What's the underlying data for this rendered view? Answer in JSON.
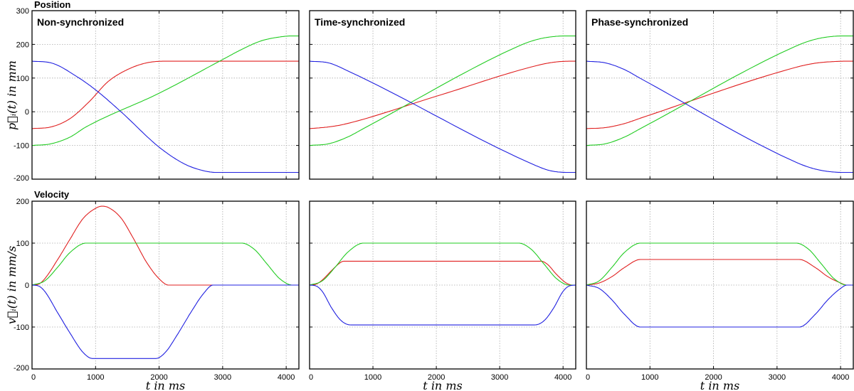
{
  "row_titles": {
    "position": "Position",
    "velocity": "Velocity"
  },
  "axis_labels": {
    "position_y": "p⃗ᵢ(t) in mm",
    "velocity_y": "v⃗ᵢ(t) in mm/s",
    "x": "t in ms"
  },
  "colors": {
    "red": "#e02020",
    "green": "#22cc22",
    "blue": "#2020e0"
  },
  "chart_data": [
    {
      "type": "line",
      "row": "position",
      "col": 0,
      "title": "Non-synchronized",
      "xlim": [
        0,
        4200
      ],
      "ylim": [
        -200,
        300
      ],
      "xticks": [
        0,
        1000,
        2000,
        3000,
        4000
      ],
      "yticks": [
        -200,
        -100,
        0,
        100,
        200,
        300
      ],
      "grid": true,
      "series": [
        {
          "color": "red",
          "points": [
            [
              0,
              -50
            ],
            [
              300,
              -45
            ],
            [
              600,
              -20
            ],
            [
              900,
              30
            ],
            [
              1200,
              90
            ],
            [
              1500,
              125
            ],
            [
              1800,
              145
            ],
            [
              2100,
              150
            ],
            [
              4200,
              150
            ]
          ]
        },
        {
          "color": "green",
          "points": [
            [
              0,
              -100
            ],
            [
              300,
              -95
            ],
            [
              600,
              -75
            ],
            [
              850,
              -45
            ],
            [
              2000,
              55
            ],
            [
              3000,
              155
            ],
            [
              3300,
              185
            ],
            [
              3600,
              210
            ],
            [
              3900,
              222
            ],
            [
              4100,
              225
            ],
            [
              4200,
              225
            ]
          ]
        },
        {
          "color": "blue",
          "points": [
            [
              0,
              150
            ],
            [
              300,
              145
            ],
            [
              700,
              105
            ],
            [
              1000,
              65
            ],
            [
              1400,
              0
            ],
            [
              2000,
              -105
            ],
            [
              2400,
              -155
            ],
            [
              2700,
              -175
            ],
            [
              2900,
              -180
            ],
            [
              4200,
              -180
            ]
          ]
        }
      ]
    },
    {
      "type": "line",
      "row": "position",
      "col": 1,
      "title": "Time-synchronized",
      "xlim": [
        0,
        4200
      ],
      "ylim": [
        -200,
        300
      ],
      "xticks": [
        0,
        1000,
        2000,
        3000,
        4000
      ],
      "yticks": [
        -200,
        -100,
        0,
        100,
        200,
        300
      ],
      "grid": true,
      "series": [
        {
          "color": "red",
          "points": [
            [
              0,
              -50
            ],
            [
              300,
              -45
            ],
            [
              550,
              -37
            ],
            [
              2000,
              46
            ],
            [
              3650,
              140
            ],
            [
              3900,
              148
            ],
            [
              4150,
              150
            ],
            [
              4200,
              150
            ]
          ]
        },
        {
          "color": "green",
          "points": [
            [
              0,
              -100
            ],
            [
              300,
              -95
            ],
            [
              600,
              -75
            ],
            [
              850,
              -50
            ],
            [
              3300,
              195
            ],
            [
              3600,
              215
            ],
            [
              3900,
              224
            ],
            [
              4100,
              225
            ],
            [
              4200,
              225
            ]
          ]
        },
        {
          "color": "blue",
          "points": [
            [
              0,
              150
            ],
            [
              300,
              145
            ],
            [
              650,
              117
            ],
            [
              3550,
              -158
            ],
            [
              3800,
              -175
            ],
            [
              4100,
              -180
            ],
            [
              4200,
              -180
            ]
          ]
        }
      ]
    },
    {
      "type": "line",
      "row": "position",
      "col": 2,
      "title": "Phase-synchronized",
      "xlim": [
        0,
        4200
      ],
      "ylim": [
        -200,
        300
      ],
      "xticks": [
        0,
        1000,
        2000,
        3000,
        4000
      ],
      "yticks": [
        -200,
        -100,
        0,
        100,
        200,
        300
      ],
      "grid": true,
      "series": [
        {
          "color": "red",
          "points": [
            [
              0,
              -50
            ],
            [
              300,
              -47
            ],
            [
              600,
              -35
            ],
            [
              850,
              -19
            ],
            [
              3300,
              132
            ],
            [
              3600,
              144
            ],
            [
              3900,
              149
            ],
            [
              4100,
              150
            ],
            [
              4200,
              150
            ]
          ]
        },
        {
          "color": "green",
          "points": [
            [
              0,
              -100
            ],
            [
              300,
              -95
            ],
            [
              600,
              -75
            ],
            [
              850,
              -50
            ],
            [
              3300,
              195
            ],
            [
              3600,
              215
            ],
            [
              3900,
              224
            ],
            [
              4100,
              225
            ],
            [
              4200,
              225
            ]
          ]
        },
        {
          "color": "blue",
          "points": [
            [
              0,
              150
            ],
            [
              300,
              145
            ],
            [
              600,
              125
            ],
            [
              850,
              99
            ],
            [
              3300,
              -150
            ],
            [
              3600,
              -170
            ],
            [
              3900,
              -179
            ],
            [
              4100,
              -180
            ],
            [
              4200,
              -180
            ]
          ]
        }
      ]
    },
    {
      "type": "line",
      "row": "velocity",
      "col": 0,
      "title": "",
      "xlim": [
        0,
        4200
      ],
      "ylim": [
        -200,
        200
      ],
      "xticks": [
        0,
        1000,
        2000,
        3000,
        4000
      ],
      "yticks": [
        -200,
        -100,
        0,
        100,
        200
      ],
      "grid": true,
      "series": [
        {
          "color": "red",
          "points": [
            [
              0,
              0
            ],
            [
              100,
              2
            ],
            [
              200,
              15
            ],
            [
              400,
              60
            ],
            [
              600,
              110
            ],
            [
              800,
              158
            ],
            [
              1000,
              183
            ],
            [
              1100,
              188
            ],
            [
              1200,
              185
            ],
            [
              1400,
              160
            ],
            [
              1600,
              110
            ],
            [
              1800,
              55
            ],
            [
              2000,
              15
            ],
            [
              2150,
              0
            ],
            [
              4200,
              0
            ]
          ]
        },
        {
          "color": "green",
          "points": [
            [
              0,
              0
            ],
            [
              200,
              10
            ],
            [
              400,
              42
            ],
            [
              600,
              78
            ],
            [
              850,
              100
            ],
            [
              3300,
              100
            ],
            [
              3500,
              85
            ],
            [
              3700,
              50
            ],
            [
              3900,
              15
            ],
            [
              4100,
              0
            ],
            [
              4200,
              0
            ]
          ]
        },
        {
          "color": "blue",
          "points": [
            [
              0,
              0
            ],
            [
              100,
              -2
            ],
            [
              200,
              -15
            ],
            [
              400,
              -65
            ],
            [
              600,
              -115
            ],
            [
              800,
              -160
            ],
            [
              950,
              -175
            ],
            [
              1950,
              -175
            ],
            [
              2100,
              -160
            ],
            [
              2300,
              -115
            ],
            [
              2500,
              -65
            ],
            [
              2700,
              -20
            ],
            [
              2850,
              0
            ],
            [
              4200,
              0
            ]
          ]
        }
      ]
    },
    {
      "type": "line",
      "row": "velocity",
      "col": 1,
      "title": "",
      "xlim": [
        0,
        4200
      ],
      "ylim": [
        -200,
        200
      ],
      "xticks": [
        0,
        1000,
        2000,
        3000,
        4000
      ],
      "yticks": [
        -200,
        -100,
        0,
        100,
        200
      ],
      "grid": true,
      "series": [
        {
          "color": "red",
          "points": [
            [
              0,
              0
            ],
            [
              100,
              2
            ],
            [
              200,
              12
            ],
            [
              350,
              35
            ],
            [
              500,
              55
            ],
            [
              550,
              57
            ],
            [
              3650,
              57
            ],
            [
              3750,
              50
            ],
            [
              3900,
              25
            ],
            [
              4050,
              5
            ],
            [
              4150,
              0
            ],
            [
              4200,
              0
            ]
          ]
        },
        {
          "color": "green",
          "points": [
            [
              0,
              0
            ],
            [
              200,
              10
            ],
            [
              400,
              42
            ],
            [
              600,
              78
            ],
            [
              850,
              100
            ],
            [
              3300,
              100
            ],
            [
              3500,
              85
            ],
            [
              3700,
              50
            ],
            [
              3900,
              15
            ],
            [
              4100,
              0
            ],
            [
              4200,
              0
            ]
          ]
        },
        {
          "color": "blue",
          "points": [
            [
              0,
              0
            ],
            [
              100,
              -2
            ],
            [
              200,
              -15
            ],
            [
              350,
              -55
            ],
            [
              500,
              -85
            ],
            [
              650,
              -95
            ],
            [
              3550,
              -95
            ],
            [
              3700,
              -85
            ],
            [
              3850,
              -55
            ],
            [
              4000,
              -15
            ],
            [
              4100,
              -2
            ],
            [
              4200,
              0
            ]
          ]
        }
      ]
    },
    {
      "type": "line",
      "row": "velocity",
      "col": 2,
      "title": "",
      "xlim": [
        0,
        4200
      ],
      "ylim": [
        -200,
        200
      ],
      "xticks": [
        0,
        1000,
        2000,
        3000,
        4000
      ],
      "yticks": [
        -200,
        -100,
        0,
        100,
        200
      ],
      "grid": true,
      "series": [
        {
          "color": "red",
          "points": [
            [
              0,
              0
            ],
            [
              200,
              5
            ],
            [
              400,
              20
            ],
            [
              600,
              42
            ],
            [
              850,
              61
            ],
            [
              3350,
              61
            ],
            [
              3600,
              42
            ],
            [
              3800,
              20
            ],
            [
              4000,
              5
            ],
            [
              4100,
              0
            ],
            [
              4200,
              0
            ]
          ]
        },
        {
          "color": "green",
          "points": [
            [
              0,
              0
            ],
            [
              200,
              10
            ],
            [
              400,
              42
            ],
            [
              600,
              78
            ],
            [
              850,
              100
            ],
            [
              3300,
              100
            ],
            [
              3500,
              85
            ],
            [
              3700,
              50
            ],
            [
              3900,
              15
            ],
            [
              4100,
              0
            ],
            [
              4200,
              0
            ]
          ]
        },
        {
          "color": "blue",
          "points": [
            [
              0,
              0
            ],
            [
              200,
              -8
            ],
            [
              400,
              -35
            ],
            [
              600,
              -70
            ],
            [
              850,
              -100
            ],
            [
              3350,
              -100
            ],
            [
              3600,
              -70
            ],
            [
              3800,
              -35
            ],
            [
              4000,
              -8
            ],
            [
              4100,
              0
            ],
            [
              4200,
              0
            ]
          ]
        }
      ]
    }
  ]
}
